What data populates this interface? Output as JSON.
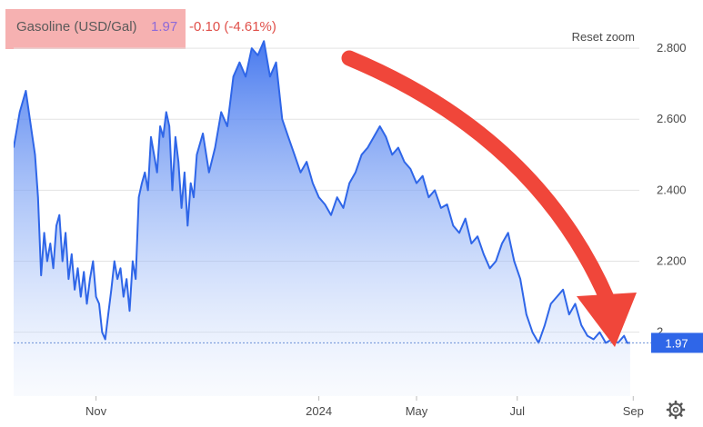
{
  "header": {
    "instrument": "Gasoline (USD/Gal)",
    "price": "1.97",
    "change": "-0.10 (-4.61%)",
    "highlight_color": "#f4a3a3",
    "price_color": "#8e6ad8",
    "change_color": "#e0504a"
  },
  "controls": {
    "reset_zoom": "Reset zoom",
    "settings_icon": "gear-icon"
  },
  "annotation": {
    "arrow_color": "#f0463a",
    "arrow_icon": "curved-down-arrow"
  },
  "chart_data": {
    "type": "area",
    "title": "",
    "xlabel": "",
    "ylabel": "",
    "ylim": [
      1.82,
      2.9
    ],
    "yticks": [
      {
        "value": 2.8,
        "label": "2.800"
      },
      {
        "value": 2.6,
        "label": "2.600"
      },
      {
        "value": 2.4,
        "label": "2.400"
      },
      {
        "value": 2.2,
        "label": "2.200"
      },
      {
        "value": 2.0,
        "label": "2"
      }
    ],
    "xticks": [
      "Nov",
      "2024",
      "May",
      "Jul",
      "Sep"
    ],
    "xtick_positions": [
      0.27,
      1.0,
      1.32,
      1.65,
      2.03
    ],
    "x_range": [
      0,
      2.05
    ],
    "grid": true,
    "line_color": "#2f66e8",
    "last_value": 1.97,
    "last_value_label": "1.97",
    "series": [
      {
        "x": [
          0,
          0.02,
          0.04,
          0.06,
          0.07,
          0.08,
          0.09,
          0.1,
          0.11,
          0.12,
          0.13,
          0.14,
          0.15,
          0.16,
          0.17,
          0.18,
          0.19,
          0.2,
          0.21,
          0.22,
          0.23,
          0.24,
          0.25,
          0.26,
          0.27,
          0.28,
          0.29,
          0.3,
          0.31,
          0.32,
          0.33,
          0.34,
          0.35,
          0.36,
          0.37,
          0.38,
          0.39,
          0.4,
          0.41,
          0.42,
          0.43,
          0.44,
          0.45,
          0.46,
          0.47,
          0.48,
          0.49,
          0.5,
          0.51,
          0.52,
          0.53,
          0.54,
          0.55,
          0.56,
          0.57,
          0.58,
          0.59,
          0.6,
          0.62,
          0.64,
          0.66,
          0.68,
          0.7,
          0.72,
          0.74,
          0.76,
          0.78,
          0.8,
          0.82,
          0.84,
          0.86,
          0.88,
          0.9,
          0.92,
          0.94,
          0.96,
          0.98,
          1.0,
          1.02,
          1.04,
          1.06,
          1.08,
          1.1,
          1.12,
          1.14,
          1.16,
          1.18,
          1.2,
          1.22,
          1.24,
          1.26,
          1.28,
          1.3,
          1.32,
          1.34,
          1.36,
          1.38,
          1.4,
          1.42,
          1.44,
          1.46,
          1.48,
          1.5,
          1.52,
          1.54,
          1.56,
          1.58,
          1.6,
          1.62,
          1.64,
          1.66,
          1.68,
          1.7,
          1.72,
          1.74,
          1.76,
          1.78,
          1.8,
          1.82,
          1.84,
          1.86,
          1.88,
          1.9,
          1.92,
          1.94,
          1.96,
          1.98,
          2.0,
          2.01,
          2.02
        ],
        "values": [
          2.52,
          2.62,
          2.68,
          2.56,
          2.5,
          2.38,
          2.16,
          2.28,
          2.2,
          2.25,
          2.18,
          2.3,
          2.33,
          2.2,
          2.28,
          2.15,
          2.22,
          2.12,
          2.18,
          2.1,
          2.17,
          2.08,
          2.15,
          2.2,
          2.1,
          2.08,
          2.0,
          1.98,
          2.05,
          2.12,
          2.2,
          2.15,
          2.18,
          2.1,
          2.15,
          2.06,
          2.2,
          2.15,
          2.38,
          2.42,
          2.45,
          2.4,
          2.55,
          2.5,
          2.45,
          2.58,
          2.55,
          2.62,
          2.58,
          2.4,
          2.55,
          2.48,
          2.35,
          2.45,
          2.3,
          2.42,
          2.38,
          2.5,
          2.56,
          2.45,
          2.52,
          2.62,
          2.58,
          2.72,
          2.76,
          2.72,
          2.8,
          2.78,
          2.82,
          2.72,
          2.76,
          2.6,
          2.55,
          2.5,
          2.45,
          2.48,
          2.42,
          2.38,
          2.36,
          2.33,
          2.38,
          2.35,
          2.42,
          2.45,
          2.5,
          2.52,
          2.55,
          2.58,
          2.55,
          2.5,
          2.52,
          2.48,
          2.46,
          2.42,
          2.44,
          2.38,
          2.4,
          2.35,
          2.36,
          2.3,
          2.28,
          2.32,
          2.25,
          2.27,
          2.22,
          2.18,
          2.2,
          2.25,
          2.28,
          2.2,
          2.15,
          2.05,
          2.0,
          1.97,
          2.02,
          2.08,
          2.1,
          2.12,
          2.05,
          2.08,
          2.02,
          1.99,
          1.98,
          2.0,
          1.97,
          1.98,
          1.97,
          1.99,
          1.97,
          1.97
        ]
      }
    ]
  }
}
